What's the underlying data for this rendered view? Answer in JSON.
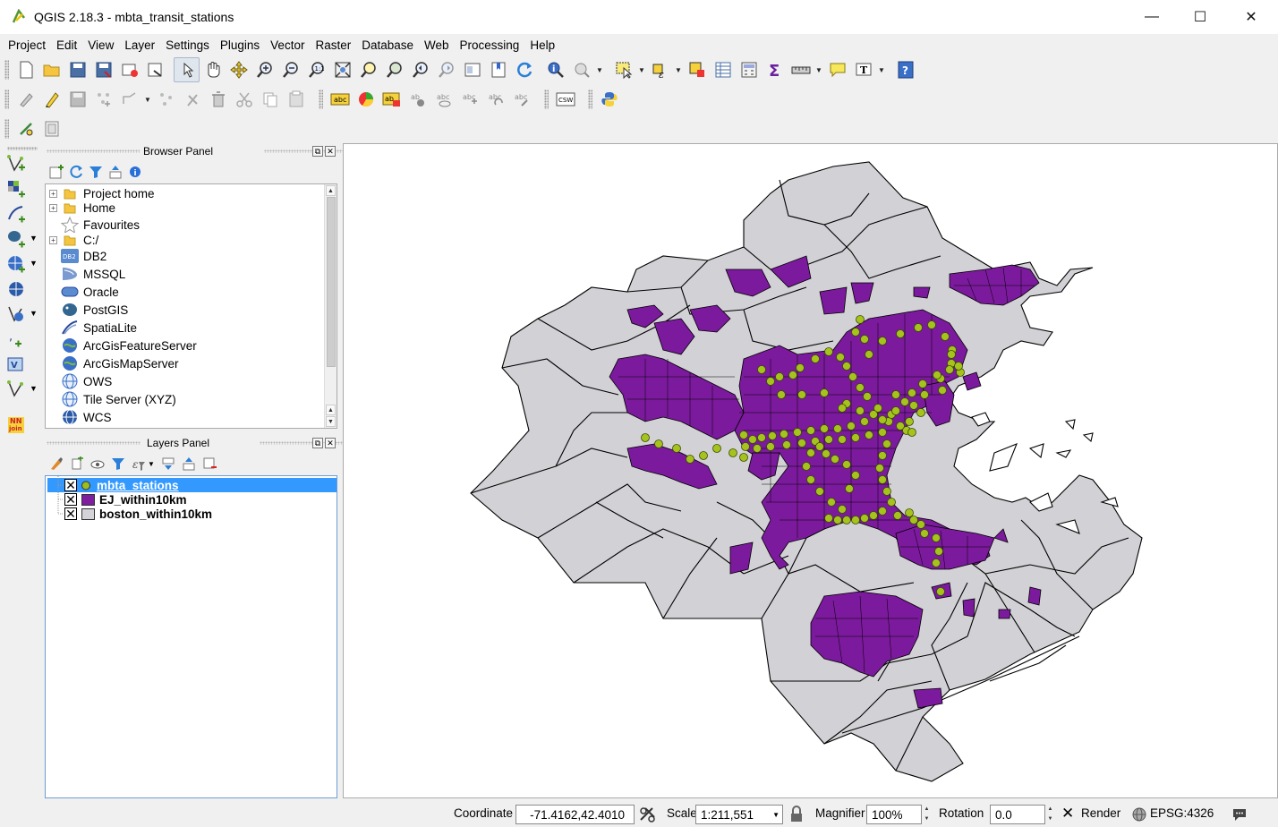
{
  "window": {
    "title": "QGIS 2.18.3 - mbta_transit_stations",
    "minimize": "—",
    "maximize": "☐",
    "close": "✕"
  },
  "menu": [
    "Project",
    "Edit",
    "View",
    "Layer",
    "Settings",
    "Plugins",
    "Vector",
    "Raster",
    "Database",
    "Web",
    "Processing",
    "Help"
  ],
  "toolbar2": {
    "csw_label": "CSW"
  },
  "vtoolbar": {
    "nn_join_label": "NN\njoin"
  },
  "browser_panel": {
    "title": "Browser Panel",
    "items": [
      {
        "label": "Project home",
        "icon": "folder-icon",
        "expandable": true
      },
      {
        "label": "Home",
        "icon": "folder-icon",
        "expandable": true
      },
      {
        "label": "Favourites",
        "icon": "star-icon",
        "expandable": false
      },
      {
        "label": "C:/",
        "icon": "folder-icon",
        "expandable": true
      },
      {
        "label": "DB2",
        "icon": "db2-icon",
        "expandable": false
      },
      {
        "label": "MSSQL",
        "icon": "mssql-icon",
        "expandable": false
      },
      {
        "label": "Oracle",
        "icon": "oracle-icon",
        "expandable": false
      },
      {
        "label": "PostGIS",
        "icon": "postgis-icon",
        "expandable": false
      },
      {
        "label": "SpatiaLite",
        "icon": "spatialite-icon",
        "expandable": false
      },
      {
        "label": "ArcGisFeatureServer",
        "icon": "arcgis-icon",
        "expandable": false
      },
      {
        "label": "ArcGisMapServer",
        "icon": "arcgis-icon",
        "expandable": false
      },
      {
        "label": "OWS",
        "icon": "globe-icon",
        "expandable": false
      },
      {
        "label": "Tile Server (XYZ)",
        "icon": "globe-icon",
        "expandable": false
      },
      {
        "label": "WCS",
        "icon": "globe-icon",
        "expandable": false
      }
    ],
    "db2_badge": "DB2"
  },
  "layers_panel": {
    "title": "Layers Panel",
    "layers": [
      {
        "name": "mbta_stations",
        "checked": true,
        "selected": true,
        "symbol": "point",
        "color": "#9dbd1a"
      },
      {
        "name": "EJ_within10km",
        "checked": true,
        "selected": false,
        "symbol": "polygon",
        "color": "#7f1fa0"
      },
      {
        "name": "boston_within10km",
        "checked": true,
        "selected": false,
        "symbol": "polygon",
        "color": "#d3d3d8"
      }
    ]
  },
  "map": {
    "colors": {
      "background": "#ffffff",
      "gray_fill": "#d2d2d6",
      "purple_fill": "#7b1a9c",
      "station": "#a6c21c",
      "outline": "#000000"
    }
  },
  "statusbar": {
    "coordinate_label": "Coordinate",
    "coordinate_value": "-71.4162,42.4010",
    "scale_label": "Scale",
    "scale_value": "1:211,551",
    "magnifier_label": "Magnifier",
    "magnifier_value": "100%",
    "rotation_label": "Rotation",
    "rotation_value": "0.0",
    "render_label": "Render",
    "render_checked": true,
    "crs_label": "EPSG:4326"
  }
}
